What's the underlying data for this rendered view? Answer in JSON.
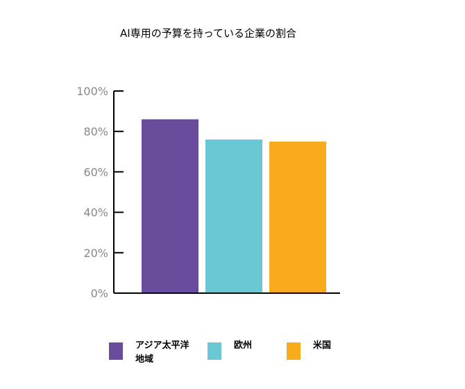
{
  "chart_data": {
    "type": "bar",
    "title": "AI専用の予算を持っている企業の割合",
    "categories": [
      "アジア太平洋地域",
      "欧州",
      "米国"
    ],
    "values": [
      86,
      76,
      75
    ],
    "colors": [
      "#6a4c9c",
      "#6ac7d4",
      "#f9ab1d"
    ],
    "ylim": [
      0,
      100
    ],
    "yticks": [
      "0%",
      "20%",
      "40%",
      "60%",
      "80%",
      "100%"
    ],
    "ytick_values": [
      0,
      20,
      40,
      60,
      80,
      100
    ],
    "grid": false,
    "legend_position": "bottom",
    "legend": [
      {
        "label": "アジア太平洋\n地域",
        "color": "#6a4c9c"
      },
      {
        "label": "欧州",
        "color": "#6ac7d4"
      },
      {
        "label": "米国",
        "color": "#f9ab1d"
      }
    ]
  }
}
